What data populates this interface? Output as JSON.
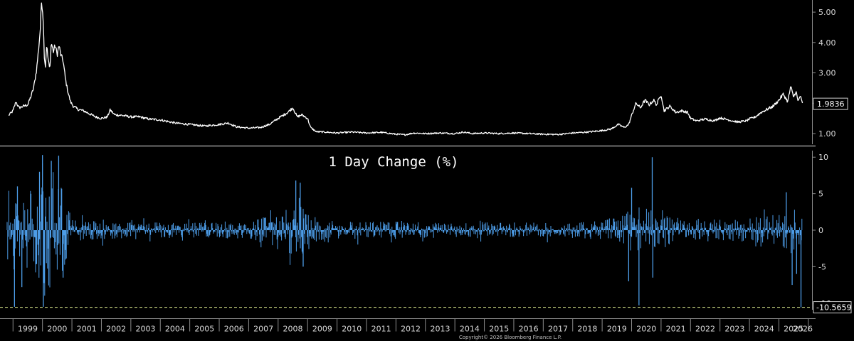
{
  "chart_data": [
    {
      "type": "line",
      "title": "",
      "xlabel": "",
      "ylabel": "",
      "line_color": "#ffffff",
      "xlim": [
        1998.8,
        2026.1
      ],
      "ylim": [
        0.65,
        5.4
      ],
      "y_ticks": [
        "1.00",
        "2.00",
        "3.00",
        "4.00",
        "5.00"
      ],
      "y_tick_values": [
        1,
        2,
        3,
        4,
        5
      ],
      "last_value_label": "1.9836",
      "points": [
        [
          1998.85,
          1.6
        ],
        [
          1999.0,
          1.75
        ],
        [
          1999.1,
          2.05
        ],
        [
          1999.2,
          1.85
        ],
        [
          1999.35,
          1.9
        ],
        [
          1999.5,
          1.95
        ],
        [
          1999.6,
          2.2
        ],
        [
          1999.7,
          2.5
        ],
        [
          1999.8,
          3.1
        ],
        [
          1999.88,
          3.9
        ],
        [
          1999.93,
          4.5
        ],
        [
          1999.97,
          5.4
        ],
        [
          2000.02,
          4.9
        ],
        [
          2000.06,
          3.6
        ],
        [
          2000.1,
          3.2
        ],
        [
          2000.14,
          3.9
        ],
        [
          2000.2,
          3.4
        ],
        [
          2000.25,
          3.1
        ],
        [
          2000.3,
          4.0
        ],
        [
          2000.37,
          3.7
        ],
        [
          2000.43,
          3.9
        ],
        [
          2000.5,
          3.6
        ],
        [
          2000.56,
          3.9
        ],
        [
          2000.62,
          3.6
        ],
        [
          2000.7,
          3.4
        ],
        [
          2000.78,
          2.8
        ],
        [
          2000.86,
          2.4
        ],
        [
          2000.95,
          2.05
        ],
        [
          2001.05,
          1.9
        ],
        [
          2001.2,
          1.8
        ],
        [
          2001.4,
          1.75
        ],
        [
          2001.6,
          1.65
        ],
        [
          2001.8,
          1.55
        ],
        [
          2002.0,
          1.5
        ],
        [
          2002.2,
          1.55
        ],
        [
          2002.3,
          1.78
        ],
        [
          2002.45,
          1.62
        ],
        [
          2002.7,
          1.6
        ],
        [
          2003.0,
          1.55
        ],
        [
          2003.3,
          1.55
        ],
        [
          2003.6,
          1.48
        ],
        [
          2004.0,
          1.45
        ],
        [
          2004.5,
          1.35
        ],
        [
          2005.0,
          1.3
        ],
        [
          2005.5,
          1.25
        ],
        [
          2006.0,
          1.3
        ],
        [
          2006.3,
          1.35
        ],
        [
          2006.6,
          1.22
        ],
        [
          2007.0,
          1.18
        ],
        [
          2007.4,
          1.2
        ],
        [
          2007.7,
          1.3
        ],
        [
          2008.0,
          1.5
        ],
        [
          2008.3,
          1.68
        ],
        [
          2008.5,
          1.85
        ],
        [
          2008.65,
          1.55
        ],
        [
          2008.8,
          1.62
        ],
        [
          2009.0,
          1.5
        ],
        [
          2009.1,
          1.2
        ],
        [
          2009.3,
          1.06
        ],
        [
          2009.6,
          1.05
        ],
        [
          2010.0,
          1.02
        ],
        [
          2010.5,
          1.05
        ],
        [
          2011.0,
          1.02
        ],
        [
          2011.5,
          1.04
        ],
        [
          2012.0,
          0.98
        ],
        [
          2012.3,
          0.96
        ],
        [
          2012.6,
          1.02
        ],
        [
          2013.0,
          1.0
        ],
        [
          2013.5,
          1.02
        ],
        [
          2014.0,
          1.0
        ],
        [
          2014.3,
          1.05
        ],
        [
          2014.6,
          1.0
        ],
        [
          2015.0,
          1.02
        ],
        [
          2015.5,
          1.0
        ],
        [
          2016.0,
          1.02
        ],
        [
          2016.5,
          1.0
        ],
        [
          2017.0,
          0.98
        ],
        [
          2017.5,
          0.97
        ],
        [
          2018.0,
          1.02
        ],
        [
          2018.5,
          1.05
        ],
        [
          2019.0,
          1.1
        ],
        [
          2019.3,
          1.15
        ],
        [
          2019.55,
          1.3
        ],
        [
          2019.75,
          1.2
        ],
        [
          2019.9,
          1.3
        ],
        [
          2020.0,
          1.6
        ],
        [
          2020.15,
          2.0
        ],
        [
          2020.3,
          1.85
        ],
        [
          2020.45,
          2.1
        ],
        [
          2020.6,
          1.95
        ],
        [
          2020.75,
          2.1
        ],
        [
          2020.85,
          1.95
        ],
        [
          2021.0,
          2.3
        ],
        [
          2021.1,
          1.75
        ],
        [
          2021.3,
          1.9
        ],
        [
          2021.5,
          1.7
        ],
        [
          2021.7,
          1.75
        ],
        [
          2021.9,
          1.7
        ],
        [
          2022.0,
          1.5
        ],
        [
          2022.2,
          1.42
        ],
        [
          2022.5,
          1.48
        ],
        [
          2022.8,
          1.42
        ],
        [
          2023.0,
          1.52
        ],
        [
          2023.3,
          1.45
        ],
        [
          2023.6,
          1.38
        ],
        [
          2023.9,
          1.42
        ],
        [
          2024.0,
          1.48
        ],
        [
          2024.2,
          1.55
        ],
        [
          2024.4,
          1.7
        ],
        [
          2024.6,
          1.8
        ],
        [
          2024.8,
          1.9
        ],
        [
          2025.0,
          2.1
        ],
        [
          2025.15,
          2.3
        ],
        [
          2025.3,
          2.05
        ],
        [
          2025.4,
          2.55
        ],
        [
          2025.5,
          2.2
        ],
        [
          2025.58,
          2.4
        ],
        [
          2025.65,
          2.05
        ],
        [
          2025.72,
          2.25
        ],
        [
          2025.8,
          1.98
        ]
      ]
    },
    {
      "type": "bar",
      "title": "1 Day Change (%)",
      "xlabel": "",
      "ylabel": "",
      "bar_color": "#4d9de8",
      "xlim": [
        1998.8,
        2026.1
      ],
      "ylim": [
        -10.9,
        10.9
      ],
      "y_ticks": [
        "-10",
        "-5",
        "0",
        "5",
        "10"
      ],
      "y_tick_values": [
        -10,
        -5,
        0,
        5,
        10
      ],
      "last_value_label": "-10.5659",
      "reference_line_value": -10.5659,
      "reference_line_color": "#d7e68a",
      "volatility_envelope": [
        [
          1998.8,
          4.5
        ],
        [
          1999.0,
          4.0
        ],
        [
          1999.5,
          4.5
        ],
        [
          1999.8,
          6.0
        ],
        [
          2000.0,
          7.5
        ],
        [
          2000.3,
          6.5
        ],
        [
          2000.6,
          5.5
        ],
        [
          2000.85,
          3.0
        ],
        [
          2001.0,
          1.3
        ],
        [
          2002.0,
          1.2
        ],
        [
          2003.0,
          1.0
        ],
        [
          2004.0,
          0.9
        ],
        [
          2005.0,
          0.8
        ],
        [
          2006.0,
          0.9
        ],
        [
          2007.0,
          1.0
        ],
        [
          2007.6,
          1.5
        ],
        [
          2008.0,
          2.2
        ],
        [
          2008.5,
          3.4
        ],
        [
          2008.8,
          3.8
        ],
        [
          2009.0,
          2.5
        ],
        [
          2009.3,
          1.4
        ],
        [
          2010.0,
          1.1
        ],
        [
          2011.0,
          1.0
        ],
        [
          2012.0,
          0.95
        ],
        [
          2013.0,
          0.85
        ],
        [
          2014.0,
          0.8
        ],
        [
          2015.0,
          0.9
        ],
        [
          2016.0,
          0.85
        ],
        [
          2017.0,
          0.8
        ],
        [
          2018.0,
          0.9
        ],
        [
          2019.0,
          1.1
        ],
        [
          2019.6,
          1.6
        ],
        [
          2020.0,
          2.6
        ],
        [
          2020.5,
          2.4
        ],
        [
          2021.0,
          2.0
        ],
        [
          2021.5,
          1.5
        ],
        [
          2022.0,
          1.3
        ],
        [
          2023.0,
          1.2
        ],
        [
          2024.0,
          1.3
        ],
        [
          2025.0,
          1.8
        ],
        [
          2025.5,
          2.3
        ],
        [
          2025.8,
          2.4
        ],
        [
          2026.1,
          2.4
        ]
      ],
      "spikes": [
        [
          1999.05,
          -10.5
        ],
        [
          1999.15,
          6.0
        ],
        [
          1999.3,
          -7.8
        ],
        [
          1999.9,
          8.0
        ],
        [
          2000.0,
          10.3
        ],
        [
          2000.03,
          -10.5
        ],
        [
          2000.3,
          9.5
        ],
        [
          2000.55,
          10.2
        ],
        [
          2000.7,
          -6.5
        ],
        [
          2008.6,
          6.8
        ],
        [
          2008.75,
          6.5
        ],
        [
          2008.85,
          -5.0
        ],
        [
          2019.9,
          -7.0
        ],
        [
          2020.0,
          5.8
        ],
        [
          2020.25,
          -10.3
        ],
        [
          2020.7,
          10.0
        ],
        [
          2020.72,
          -6.5
        ],
        [
          2025.25,
          5.2
        ],
        [
          2025.45,
          -7.5
        ],
        [
          2025.6,
          -6.0
        ],
        [
          2025.75,
          -10.57
        ]
      ]
    }
  ],
  "x_axis": {
    "years": [
      "1999",
      "2000",
      "2001",
      "2002",
      "2003",
      "2004",
      "2005",
      "2006",
      "2007",
      "2008",
      "2009",
      "2010",
      "2011",
      "2012",
      "2013",
      "2014",
      "2015",
      "2016",
      "2017",
      "2018",
      "2019",
      "2020",
      "2021",
      "2022",
      "2023",
      "2024",
      "2025",
      "2026"
    ]
  },
  "footer": {
    "copyright": "Copyright© 2026 Bloomberg Finance L.P."
  },
  "colors": {
    "background": "#000000",
    "price_line": "#ffffff",
    "change_bars": "#4d9de8",
    "reference_line": "#d7e68a",
    "axis": "#8c8c8c",
    "divider": "#6e6e6e"
  }
}
